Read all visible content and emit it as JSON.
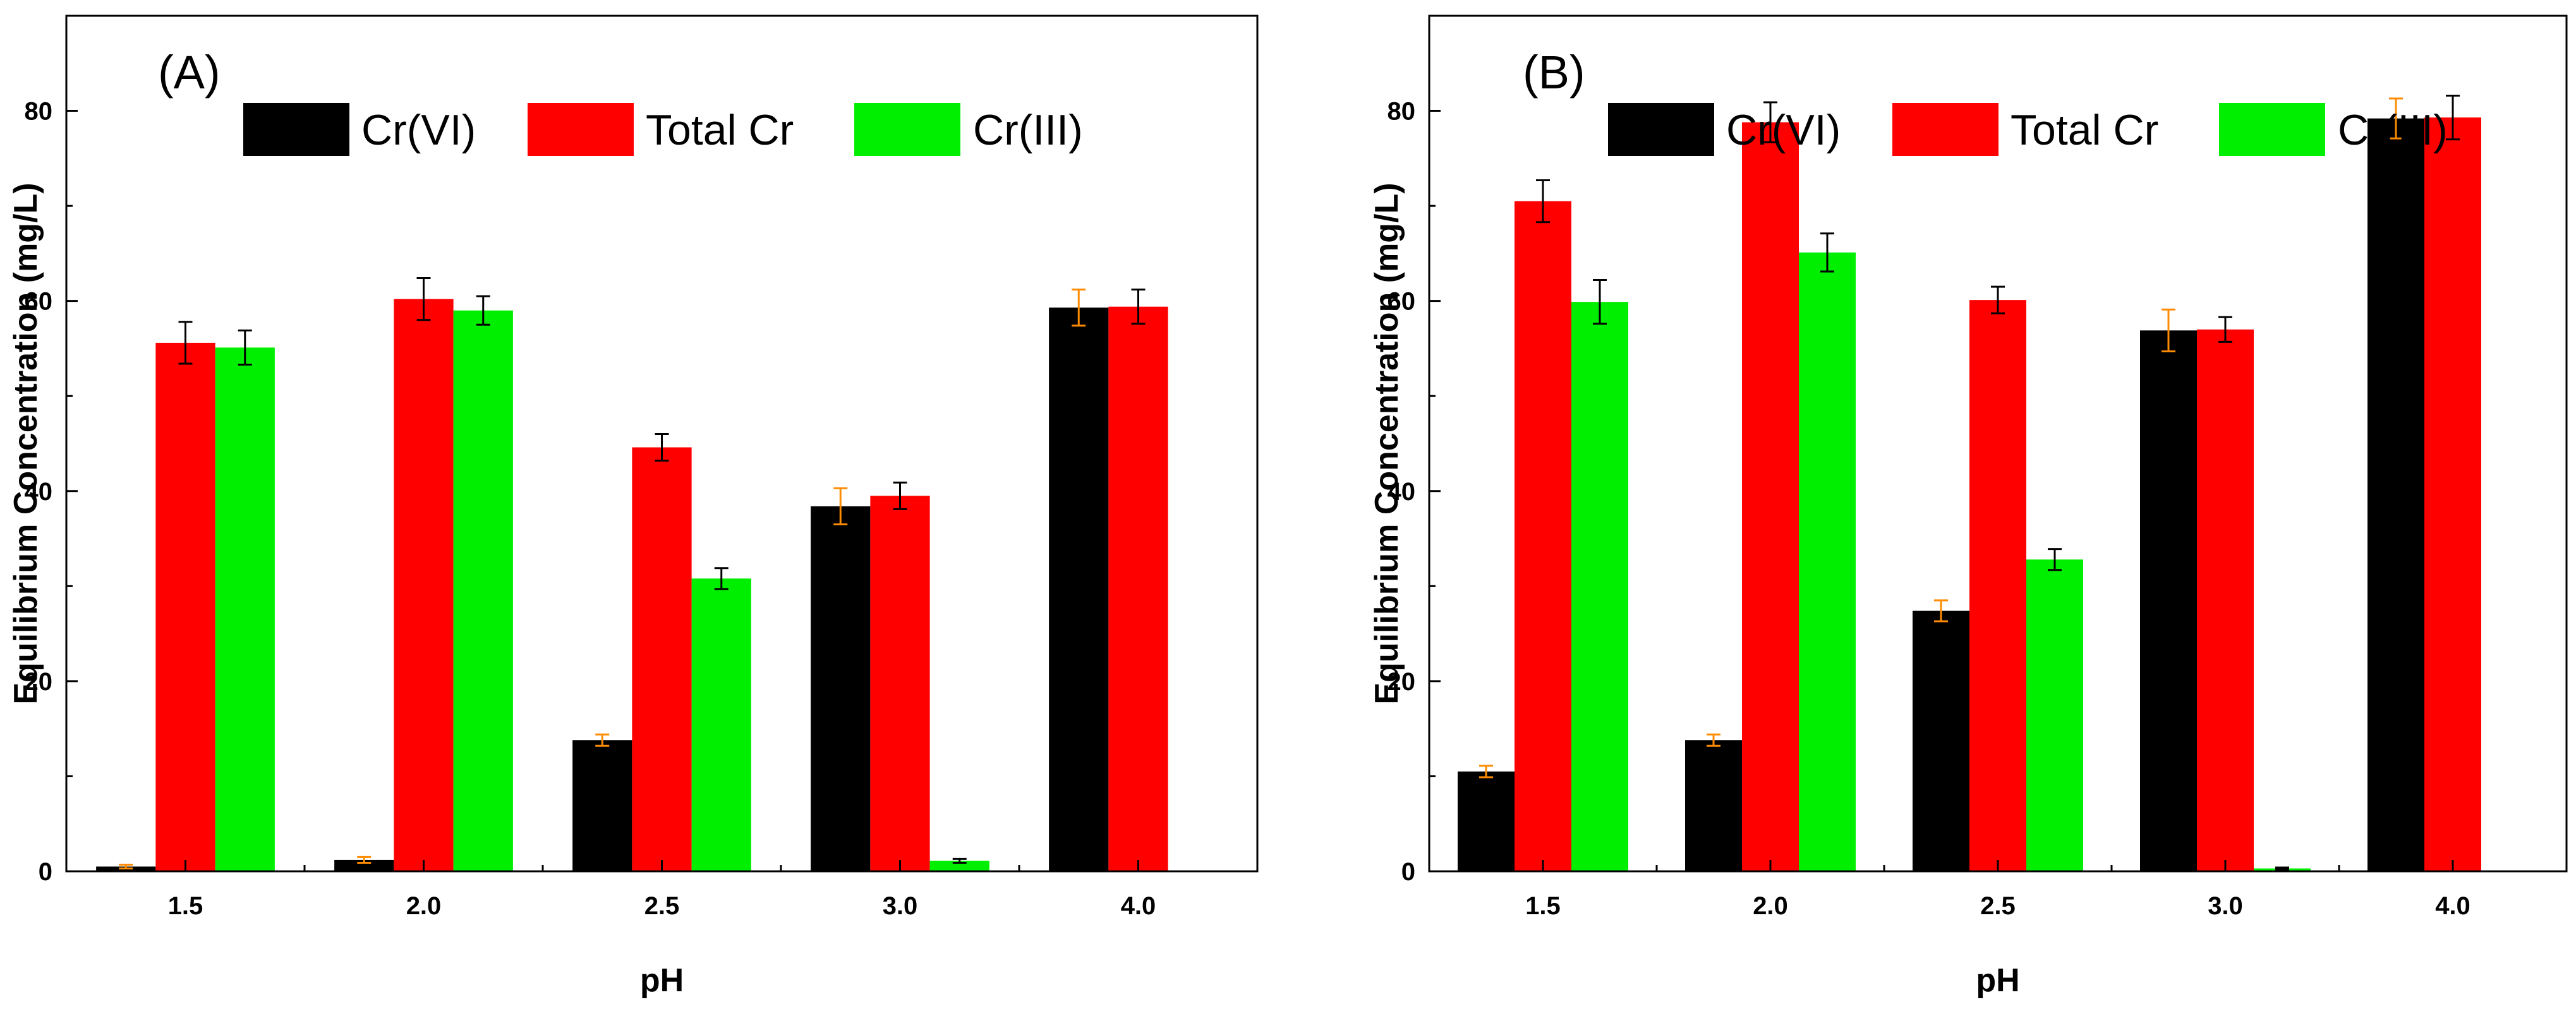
{
  "chart_data": [
    {
      "type": "bar",
      "panel_label": "(A)",
      "categories": [
        "1.5",
        "2.0",
        "2.5",
        "3.0",
        "4.0"
      ],
      "series": [
        {
          "name": "Cr(VI)",
          "color": "#000000",
          "values": [
            0.5,
            1.2,
            13.8,
            38.4,
            59.3
          ],
          "errors": [
            0.2,
            0.3,
            0.6,
            1.9,
            1.9
          ],
          "error_color": "#ff8c00"
        },
        {
          "name": "Total Cr",
          "color": "#ff0000",
          "values": [
            55.6,
            60.2,
            44.6,
            39.5,
            59.4
          ],
          "errors": [
            2.2,
            2.2,
            1.4,
            1.4,
            1.8
          ],
          "error_color": "#000000"
        },
        {
          "name": "Cr(III)",
          "color": "#00ee00",
          "values": [
            55.1,
            59.0,
            30.8,
            1.1,
            null
          ],
          "errors": [
            1.8,
            1.5,
            1.1,
            0.2,
            null
          ],
          "error_color": "#000000"
        }
      ],
      "xlabel": "pH",
      "ylabel": "Equilibrium Concentration (mg/L)",
      "ylim": [
        0,
        90
      ],
      "yticks": [
        0,
        20,
        40,
        60,
        80
      ],
      "legend": "top"
    },
    {
      "type": "bar",
      "panel_label": "(B)",
      "categories": [
        "1.5",
        "2.0",
        "2.5",
        "3.0",
        "4.0"
      ],
      "series": [
        {
          "name": "Cr(VI)",
          "color": "#000000",
          "values": [
            10.5,
            13.8,
            27.4,
            56.9,
            79.2
          ],
          "errors": [
            0.6,
            0.6,
            1.1,
            2.2,
            2.1
          ],
          "error_color": "#ff8c00"
        },
        {
          "name": "Total Cr",
          "color": "#ff0000",
          "values": [
            70.5,
            78.8,
            60.1,
            57.0,
            79.3
          ],
          "errors": [
            2.2,
            2.1,
            1.4,
            1.3,
            2.3
          ],
          "error_color": "#000000"
        },
        {
          "name": "Cr(III)",
          "color": "#00ee00",
          "values": [
            59.9,
            65.1,
            32.8,
            0.3,
            null
          ],
          "errors": [
            2.3,
            2.0,
            1.1,
            0.1,
            null
          ],
          "error_color": "#000000"
        }
      ],
      "xlabel": "pH",
      "ylabel": "Equilibrium Concentration (mg/L)",
      "ylim": [
        0,
        90
      ],
      "yticks": [
        0,
        20,
        40,
        60,
        80
      ],
      "legend": "top"
    }
  ]
}
